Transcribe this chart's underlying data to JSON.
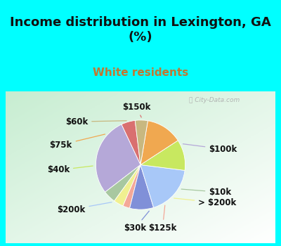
{
  "title": "Income distribution in Lexington, GA\n(%)",
  "subtitle": "White residents",
  "title_color": "#111111",
  "subtitle_color": "#c07832",
  "bg_cyan": "#00ffff",
  "watermark": "City-Data.com",
  "slices": [
    {
      "label": "$150k",
      "value": 5.0,
      "color": "#d97070"
    },
    {
      "label": "$100k",
      "value": 28.0,
      "color": "#b5a8d8"
    },
    {
      "label": "$10k",
      "value": 4.5,
      "color": "#a8c8a0"
    },
    {
      "label": "> $200k",
      "value": 3.5,
      "color": "#f0f090"
    },
    {
      "label": "$125k",
      "value": 2.5,
      "color": "#f4a898"
    },
    {
      "label": "$30k",
      "value": 8.5,
      "color": "#8090d8"
    },
    {
      "label": "$200k",
      "value": 18.0,
      "color": "#a8c8f8"
    },
    {
      "label": "$40k",
      "value": 11.0,
      "color": "#c8e860"
    },
    {
      "label": "$75k",
      "value": 13.0,
      "color": "#f0a850"
    },
    {
      "label": "$60k",
      "value": 4.5,
      "color": "#c8b880"
    }
  ],
  "label_fontsize": 8.5,
  "title_fontsize": 13,
  "subtitle_fontsize": 11,
  "startangle": 97
}
